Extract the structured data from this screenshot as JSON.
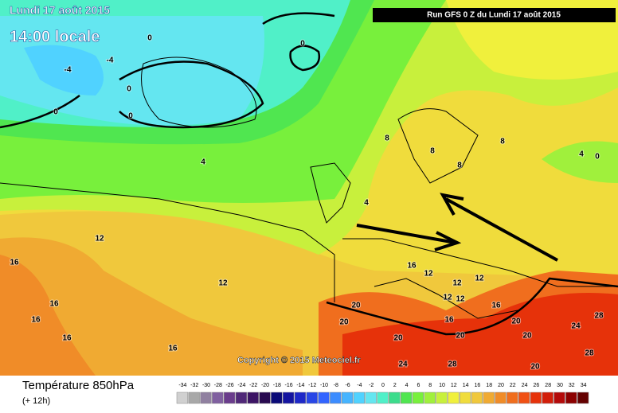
{
  "header": {
    "date": "Lundi 17 août 2015",
    "time": "14:00 locale",
    "run": "Run GFS 0 Z du Lundi 17 août 2015"
  },
  "copyright": "Copyright © 2015 Meteociel.fr",
  "contour_labels": [
    "0",
    "0",
    "-4",
    "-4",
    "0",
    "0",
    "0",
    "4",
    "8",
    "8",
    "8",
    "8",
    "4",
    "0",
    "4",
    "12",
    "16",
    "12",
    "16",
    "16",
    "16",
    "16",
    "16",
    "12",
    "12",
    "12",
    "12",
    "12",
    "16",
    "20",
    "20",
    "20",
    "20",
    "16",
    "20",
    "20",
    "24",
    "28",
    "24",
    "28",
    "20",
    "28"
  ],
  "legend": {
    "title": "Température 850hPa",
    "subtitle": "(+ 12h)",
    "scale": [
      -34,
      -32,
      -30,
      -28,
      -26,
      -24,
      -22,
      -20,
      -18,
      -16,
      -14,
      -12,
      -10,
      -8,
      -6,
      -4,
      -2,
      0,
      2,
      4,
      6,
      8,
      10,
      12,
      14,
      16,
      18,
      20,
      22,
      24,
      26,
      28,
      30,
      32,
      34
    ],
    "colors": [
      "#d0d0d0",
      "#a8a8a8",
      "#9080a0",
      "#8060a0",
      "#6a3c8c",
      "#502878",
      "#3c1464",
      "#280a50",
      "#0a0a78",
      "#1414a0",
      "#1e28c8",
      "#2846e6",
      "#3264ff",
      "#3c8cff",
      "#46b4ff",
      "#50d2ff",
      "#64e6f0",
      "#50f0c8",
      "#3cdc8c",
      "#50e650",
      "#78f03c",
      "#a0f03c",
      "#c8f03c",
      "#f0f03c",
      "#f0dc3c",
      "#f0c83c",
      "#f0aa32",
      "#f08c28",
      "#f06e1e",
      "#f05014",
      "#e6320a",
      "#d21e0a",
      "#b40a0a",
      "#8c0000",
      "#640000"
    ]
  }
}
